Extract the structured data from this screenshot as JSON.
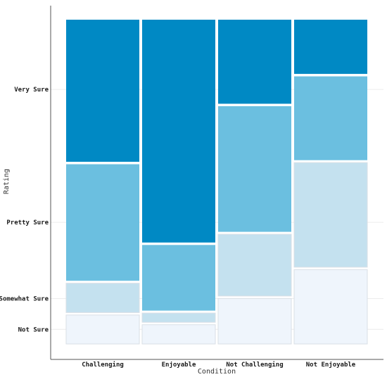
{
  "chart_data": {
    "type": "mosaic",
    "xlabel": "Condition",
    "ylabel": "Rating",
    "categories": [
      "Challenging",
      "Enjoyable",
      "Not Challenging",
      "Not Enjoyable"
    ],
    "levels": [
      "Not Sure",
      "Somewhat Sure",
      "Pretty Sure",
      "Very Sure"
    ],
    "ylim": [
      0,
      1
    ],
    "yticks": [
      {
        "label": "Very Sure",
        "value": 0.785
      },
      {
        "label": "Pretty Sure",
        "value": 0.375
      },
      {
        "label": "Somewhat Sure",
        "value": 0.14
      },
      {
        "label": "Not Sure",
        "value": 0.045
      }
    ],
    "proportions": {
      "Challenging": {
        "Not Sure": 0.093,
        "Somewhat Sure": 0.098,
        "Pretty Sure": 0.367,
        "Very Sure": 0.442
      },
      "Enjoyable": {
        "Not Sure": 0.063,
        "Somewhat Sure": 0.036,
        "Pretty Sure": 0.21,
        "Very Sure": 0.691
      },
      "Not Challenging": {
        "Not Sure": 0.144,
        "Somewhat Sure": 0.198,
        "Pretty Sure": 0.395,
        "Very Sure": 0.263
      },
      "Not Enjoyable": {
        "Not Sure": 0.233,
        "Somewhat Sure": 0.33,
        "Pretty Sure": 0.266,
        "Very Sure": 0.171
      }
    },
    "colors": {
      "Not Sure": "#eff5fc",
      "Somewhat Sure": "#c4e1ef",
      "Pretty Sure": "#6bbfe0",
      "Very Sure": "#0089c4"
    },
    "grid": true,
    "legend": "none"
  }
}
